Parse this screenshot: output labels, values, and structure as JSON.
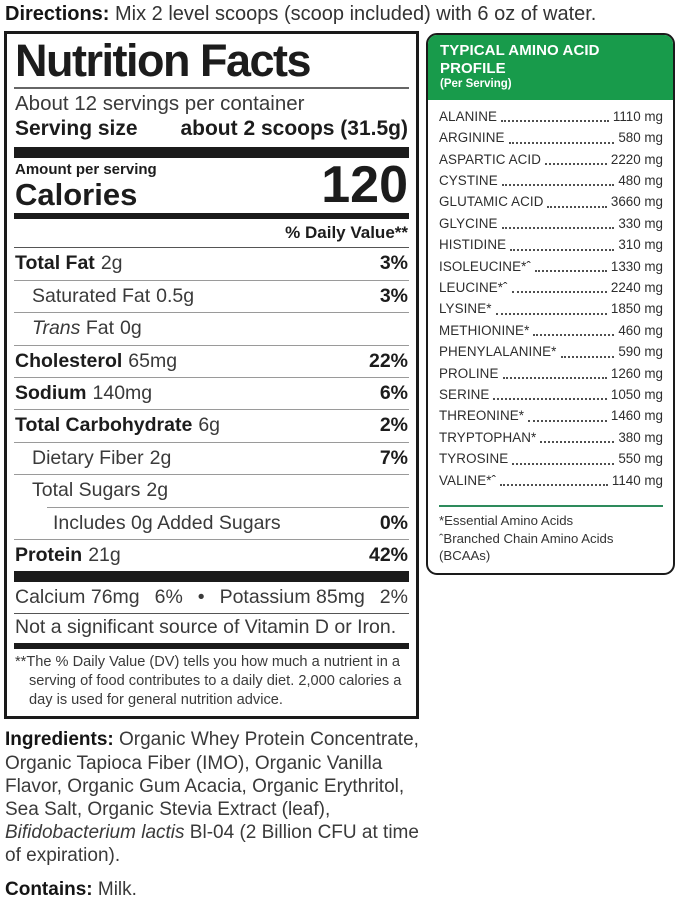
{
  "directions": {
    "label": "Directions:",
    "text": " Mix 2 level scoops (scoop included) with 6 oz of water."
  },
  "nutrition": {
    "title": "Nutrition Facts",
    "servings_per_container": "About 12 servings per container",
    "serving_size_label": "Serving size",
    "serving_size_value": "about 2 scoops (31.5g)",
    "amount_per_serving": "Amount per serving",
    "calories_label": "Calories",
    "calories_value": "120",
    "daily_value_header": "% Daily Value**",
    "rows": [
      {
        "name": "Total Fat",
        "amount": "2g",
        "dv": "3%"
      },
      {
        "name": "Saturated Fat",
        "amount": "0.5g",
        "dv": "3%"
      },
      {
        "name_italic": "Trans",
        "name": "Fat",
        "amount": "0g",
        "dv": ""
      },
      {
        "name": "Cholesterol",
        "amount": "65mg",
        "dv": "22%"
      },
      {
        "name": "Sodium",
        "amount": "140mg",
        "dv": "6%"
      },
      {
        "name": "Total Carbohydrate",
        "amount": "6g",
        "dv": "2%"
      },
      {
        "name": "Dietary Fiber",
        "amount": "2g",
        "dv": "7%"
      },
      {
        "name": "Total Sugars",
        "amount": "2g",
        "dv": ""
      },
      {
        "name": "Includes 0g Added Sugars",
        "amount": "",
        "dv": "0%"
      },
      {
        "name": "Protein",
        "amount": "21g",
        "dv": "42%"
      }
    ],
    "minerals": {
      "calcium": "Calcium 76mg",
      "calcium_dv": "6%",
      "bullet": "•",
      "potassium": "Potassium 85mg",
      "potassium_dv": "2%"
    },
    "not_significant": "Not a significant source of Vitamin D or Iron.",
    "footnote_marker": "**",
    "footnote": "The % Daily Value (DV) tells you how much a nutrient in a serving of food contributes to a daily diet. 2,000 calories a day is used for general nutrition advice."
  },
  "amino_profile": {
    "title": "TYPICAL AMINO ACID PROFILE",
    "subtitle": "(Per Serving)",
    "header_bg_color": "#189b4b",
    "divider_color": "#2e8b5c",
    "rows": [
      {
        "name": "ALANINE",
        "value": "1110 mg"
      },
      {
        "name": "ARGININE",
        "value": "580 mg"
      },
      {
        "name": "ASPARTIC ACID",
        "value": "2220 mg"
      },
      {
        "name": "CYSTINE",
        "value": "480 mg"
      },
      {
        "name": "GLUTAMIC ACID",
        "value": "3660 mg"
      },
      {
        "name": "GLYCINE",
        "value": "330 mg"
      },
      {
        "name": "HISTIDINE",
        "value": "310 mg"
      },
      {
        "name": "ISOLEUCINE*ˆ",
        "value": "1330 mg"
      },
      {
        "name": "LEUCINE*ˆ",
        "value": "2240 mg"
      },
      {
        "name": "LYSINE*",
        "value": "1850 mg"
      },
      {
        "name": "METHIONINE*",
        "value": "460 mg"
      },
      {
        "name": "PHENYLALANINE*",
        "value": "590 mg"
      },
      {
        "name": "PROLINE",
        "value": "1260 mg"
      },
      {
        "name": "SERINE",
        "value": "1050 mg"
      },
      {
        "name": "THREONINE*",
        "value": "1460 mg"
      },
      {
        "name": "TRYPTOPHAN*",
        "value": "380 mg"
      },
      {
        "name": "TYROSINE",
        "value": "550 mg"
      },
      {
        "name": "VALINE*ˆ",
        "value": "1140 mg"
      }
    ],
    "footnotes": [
      "*Essential Amino Acids",
      "ˆBranched Chain Amino Acids (BCAAs)"
    ]
  },
  "ingredients": {
    "label": "Ingredients:",
    "text_before": " Organic Whey Protein Concentrate, Organic Tapioca Fiber (IMO), Organic Vanilla Flavor, Organic Gum Acacia, Organic Erythritol, Sea Salt, Organic Stevia Extract (leaf), ",
    "italic": "Bifidobacterium lactis",
    "text_after": " Bl-04 (2 Billion CFU at time of expiration)."
  },
  "contains": {
    "label": "Contains:",
    "text": " Milk."
  }
}
